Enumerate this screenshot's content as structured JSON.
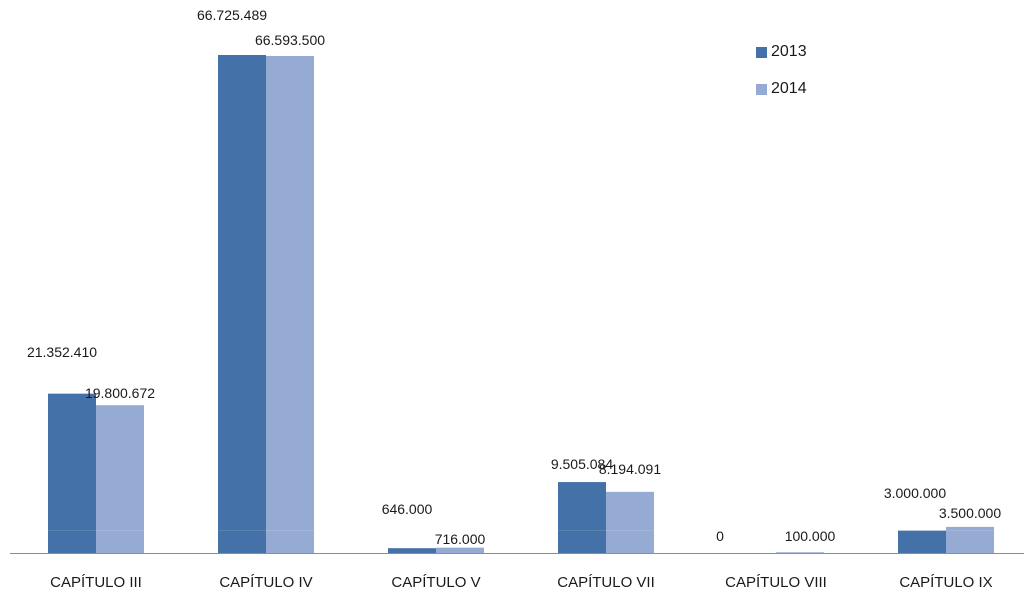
{
  "chart_data": {
    "type": "bar",
    "categories": [
      "CAPÍTULO III",
      "CAPÍTULO IV",
      "CAPÍTULO V",
      "CAPÍTULO VII",
      "CAPÍTULO VIII",
      "CAPÍTULO IX"
    ],
    "series": [
      {
        "name": "2013",
        "color": "#4472a8",
        "values": [
          21352410,
          66725489,
          646000,
          9505084,
          0,
          3000000
        ],
        "labels": [
          "21.352.410",
          "66.725.489",
          "646.000",
          "9.505.084",
          "0",
          "3.000.000"
        ]
      },
      {
        "name": "2014",
        "color": "#95abd3",
        "values": [
          19800672,
          66593500,
          716000,
          8194091,
          100000,
          3500000
        ],
        "labels": [
          "19.800.672",
          "66.593.500",
          "716.000",
          "8.194.091",
          "100.000",
          "3.500.000"
        ]
      }
    ],
    "ylim": [
      0,
      66725489
    ],
    "grid": false,
    "legend_position": "top-right"
  }
}
